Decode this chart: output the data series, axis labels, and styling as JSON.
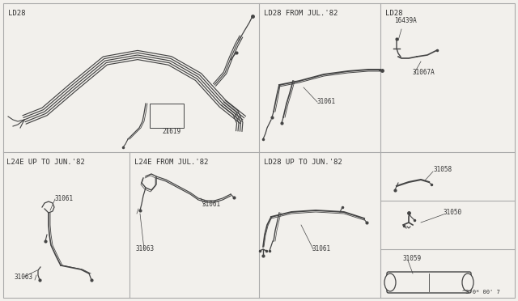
{
  "bg_color": "#f2f0ec",
  "line_color": "#444444",
  "text_color": "#333333",
  "border_color": "#aaaaaa",
  "panel_labels": {
    "top_left": "LD28",
    "top_mid": "LD28 FROM JUL.'82",
    "top_right": "LD28",
    "bot_left1": "L24E UP TO JUN.'82",
    "bot_left2": "L24E FROM JUL.'82",
    "bot_mid": "LD28 UP TO JUN.'82"
  },
  "part_labels": {
    "top_left_21619": "21619",
    "top_mid_31061": "31061",
    "top_right_16439A": "16439A",
    "top_right_31067A": "31067A",
    "right_mid_31058": "31058",
    "right_mid_31050": "31050",
    "right_bot_31059": "31059",
    "bot_left1_31061": "31061",
    "bot_left1_31063": "31063",
    "bot_left2_31061": "31061",
    "bot_left2_31063": "31063",
    "bot_mid_31061": "31061"
  },
  "footer": "^3 0* 00' 7"
}
